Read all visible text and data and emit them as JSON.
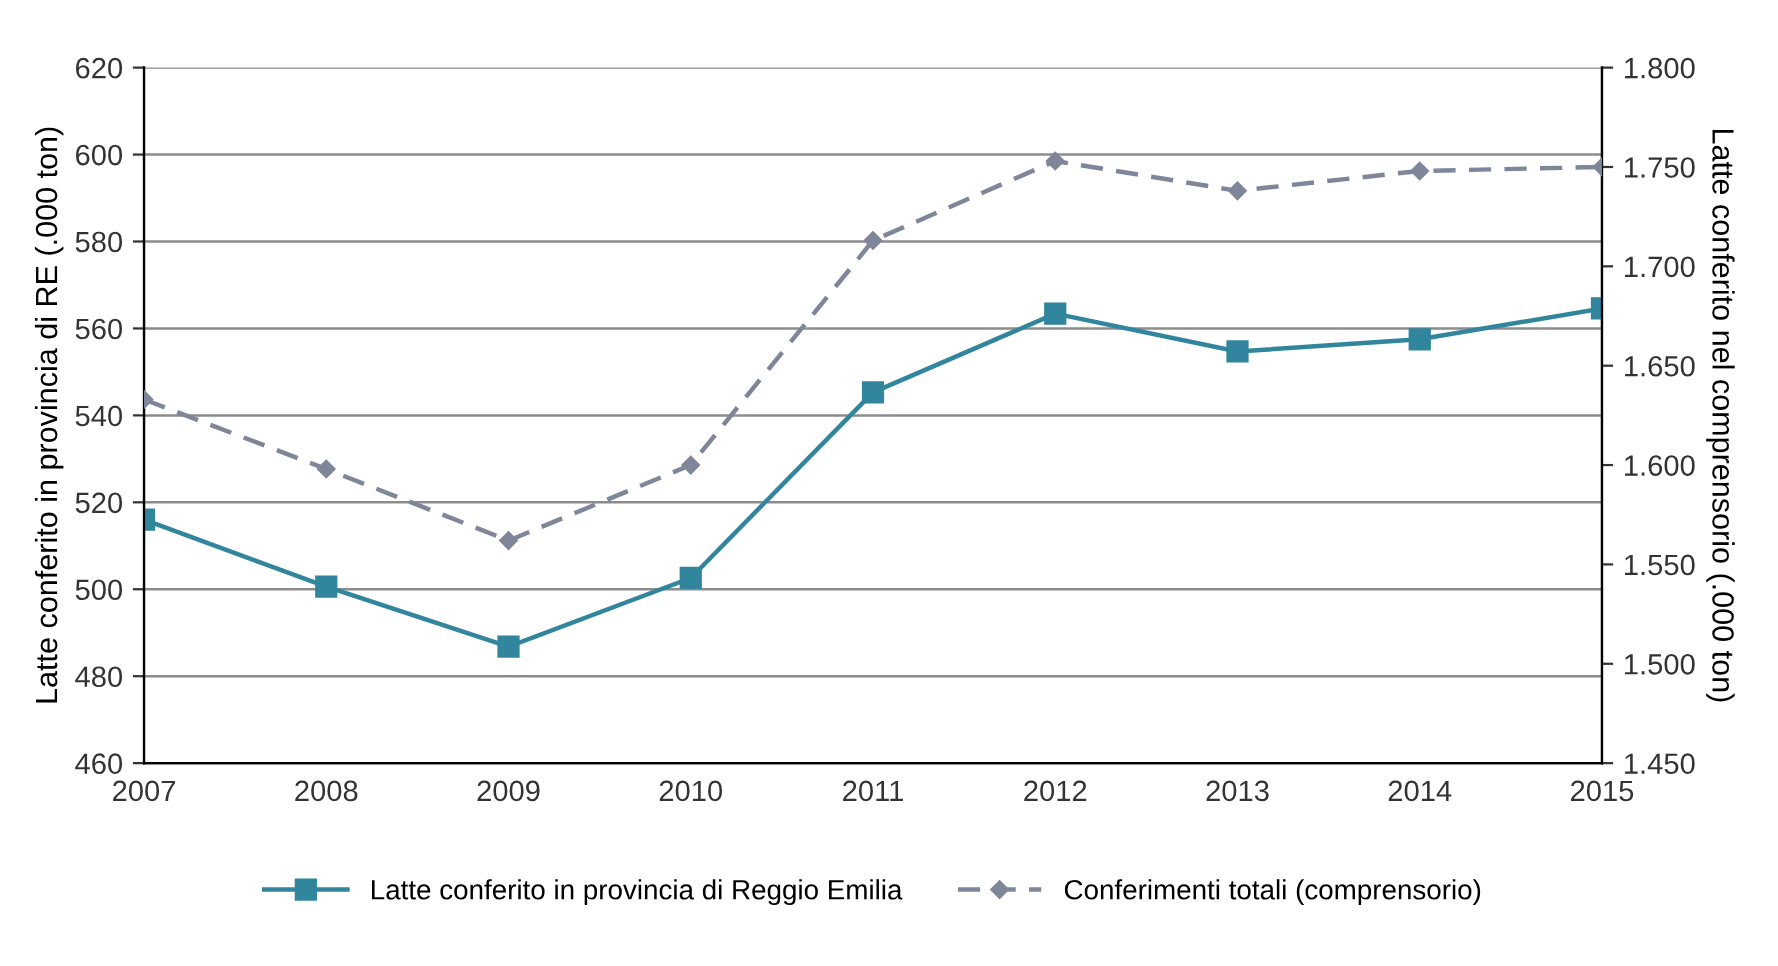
{
  "chart_data": {
    "type": "line",
    "categories": [
      "2007",
      "2008",
      "2009",
      "2010",
      "2011",
      "2012",
      "2013",
      "2014",
      "2015"
    ],
    "ylabel": "Latte conferito in provincia di RE (.000 ton)",
    "y2label": "Latte conferito nel comprensorio (.000 ton)",
    "ylim": [
      460,
      620
    ],
    "yticks": [
      460,
      480,
      500,
      520,
      540,
      560,
      580,
      600,
      620
    ],
    "y2lim": [
      1.45,
      1.8
    ],
    "y2ticks": [
      {
        "value": 1.45,
        "label": "1.450"
      },
      {
        "value": 1.5,
        "label": "1.500"
      },
      {
        "value": 1.55,
        "label": "1.550"
      },
      {
        "value": 1.6,
        "label": "1.600"
      },
      {
        "value": 1.65,
        "label": "1.650"
      },
      {
        "value": 1.7,
        "label": "1.700"
      },
      {
        "value": 1.75,
        "label": "1.750"
      },
      {
        "value": 1.8,
        "label": "1.800"
      }
    ],
    "grid": "y",
    "legend": "bottom",
    "series": [
      {
        "name": "Latte conferito in provincia di Reggio Emilia",
        "color": "#31859c",
        "marker": "square",
        "line_style": "solid",
        "values": [
          516,
          500.6,
          486.8,
          502.6,
          545.3,
          563.4,
          554.7,
          557.5,
          564.6
        ]
      },
      {
        "name": "Conferimenti totali (comprensorio)",
        "color": "#7f8699",
        "marker": "diamond",
        "line_style": "dashed",
        "axis": "y2",
        "values": [
          1.633,
          1.598,
          1.562,
          1.6,
          1.713,
          1.753,
          1.738,
          1.748,
          1.75
        ]
      }
    ]
  }
}
